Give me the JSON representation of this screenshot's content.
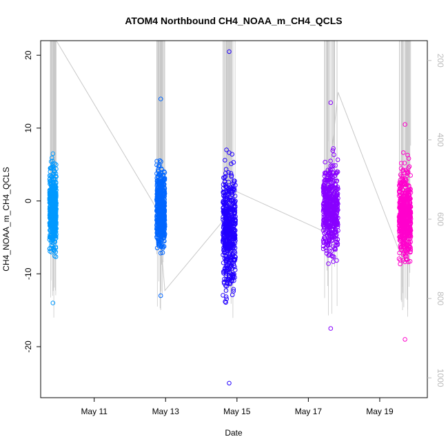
{
  "chart_data": {
    "type": "scatter",
    "title": "ATOM4 Northbound CH4_NOAA_m_CH4_QCLS",
    "xlabel": "Date",
    "ylabel": "CH4_NOAA_m_CH4_QCLS",
    "xlim": [
      "2016-05-09T12:00",
      "2016-05-20T08:00"
    ],
    "ylim": [
      -27,
      22
    ],
    "y2lim": [
      1050,
      150
    ],
    "x_ticks": [
      {
        "date": "2016-05-11",
        "label": "May 11"
      },
      {
        "date": "2016-05-13",
        "label": "May 13"
      },
      {
        "date": "2016-05-15",
        "label": "May 15"
      },
      {
        "date": "2016-05-17",
        "label": "May 17"
      },
      {
        "date": "2016-05-19",
        "label": "May 19"
      }
    ],
    "y_ticks": [
      -20,
      -10,
      0,
      10,
      20
    ],
    "y2_ticks": [
      200,
      400,
      600,
      800,
      1000
    ],
    "grid": false,
    "legend": "none",
    "altitude_line_color": "#c8c8c8",
    "series": [
      {
        "color": "#0099ff",
        "start": "2016-05-09T18:00",
        "end": "2016-05-09T22:30",
        "center": -1,
        "spread": 4.5,
        "ymin": -14,
        "ymax": 6.5
      },
      {
        "color": "#0066ff",
        "start": "2016-05-12T18:00",
        "end": "2016-05-12T23:30",
        "center": -1,
        "spread": 4.5,
        "ymin": -13,
        "ymax": 14
      },
      {
        "color": "#2200ff",
        "start": "2016-05-14T14:30",
        "end": "2016-05-14T23:00",
        "center": -4,
        "spread": 6.5,
        "ymin": -25,
        "ymax": 20.5
      },
      {
        "color": "#8800ff",
        "start": "2016-05-17T10:00",
        "end": "2016-05-17T20:00",
        "center": -1,
        "spread": 5,
        "ymin": -17.5,
        "ymax": 13.5
      },
      {
        "color": "#ff00cc",
        "start": "2016-05-19T13:00",
        "end": "2016-05-19T21:00",
        "center": -2,
        "spread": 5,
        "ymin": -19,
        "ymax": 10.5
      }
    ],
    "altitude_path": [
      [
        "2016-05-09T22:30",
        150
      ],
      [
        "2016-05-12T19:00",
        580
      ],
      [
        "2016-05-12T23:30",
        780
      ],
      [
        "2016-05-14T20:00",
        580
      ],
      [
        "2016-05-14T23:30",
        530
      ],
      [
        "2016-05-17T10:00",
        630
      ],
      [
        "2016-05-17T20:00",
        280
      ],
      [
        "2016-05-19T13:00",
        680
      ]
    ]
  }
}
